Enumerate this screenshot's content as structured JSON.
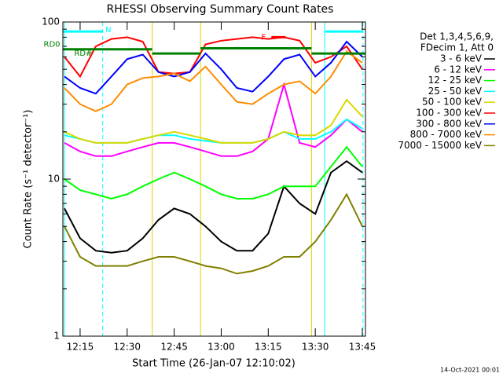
{
  "chart_data": {
    "type": "line",
    "title": "RHESSI Observing Summary Count Rates",
    "x_label": "Start Time (26-Jan-07 12:10:02)",
    "y_label": "Count Rate (s⁻¹ detector⁻¹)",
    "footer": "14-Oct-2021 00:01",
    "legend_header": [
      "Det 1,3,4,5,6,9,",
      "FDecim 1, Att 0"
    ],
    "y_log": true,
    "xlim": [
      729.5,
      826
    ],
    "ylim": [
      1,
      100
    ],
    "xticks": [
      {
        "value": 735,
        "label": "12:15"
      },
      {
        "value": 750,
        "label": "12:30"
      },
      {
        "value": 765,
        "label": "12:45"
      },
      {
        "value": 780,
        "label": "13:00"
      },
      {
        "value": 795,
        "label": "13:15"
      },
      {
        "value": 810,
        "label": "13:30"
      },
      {
        "value": 825,
        "label": "13:45"
      }
    ],
    "yticks": [
      1,
      10,
      100
    ],
    "x": [
      730,
      735,
      740,
      745,
      750,
      755,
      760,
      765,
      770,
      775,
      780,
      785,
      790,
      795,
      800,
      805,
      810,
      815,
      820,
      825
    ],
    "series": [
      {
        "name": "3 - 6 keV",
        "color": "#000000",
        "values": [
          6.5,
          4.2,
          3.5,
          3.4,
          3.5,
          4.2,
          5.5,
          6.5,
          6,
          5,
          4,
          3.5,
          3.5,
          4.5,
          9,
          7,
          6,
          11,
          13,
          11
        ]
      },
      {
        "name": "6 - 12 keV",
        "color": "#ff00ff",
        "values": [
          17,
          15,
          14,
          14,
          15,
          16,
          17,
          17,
          16,
          15,
          14,
          14,
          15,
          18,
          40,
          17,
          16,
          19,
          24,
          20
        ]
      },
      {
        "name": "12 - 25 keV",
        "color": "#00ff00",
        "values": [
          10,
          8.5,
          8,
          7.5,
          8,
          9,
          10,
          11,
          10,
          9,
          8,
          7.5,
          7.5,
          8,
          9,
          9,
          9,
          12,
          16,
          12
        ]
      },
      {
        "name": "25 - 50 keV",
        "color": "#00ffff",
        "values": [
          19,
          18,
          17,
          17,
          17,
          18,
          19,
          19,
          18,
          17.5,
          17,
          17,
          17,
          18,
          20,
          18,
          18,
          20,
          24,
          21
        ]
      },
      {
        "name": "50 - 100 keV",
        "color": "#d8d800",
        "values": [
          20,
          18,
          17,
          17,
          17,
          18,
          19,
          20,
          19,
          18,
          17,
          17,
          17,
          18,
          20,
          19,
          19,
          22,
          32,
          25
        ]
      },
      {
        "name": "100 - 300 keV",
        "color": "#ff0000",
        "values": [
          60,
          45,
          70,
          78,
          80,
          75,
          48,
          47,
          48,
          72,
          76,
          78,
          80,
          78,
          80,
          76,
          55,
          60,
          70,
          50
        ]
      },
      {
        "name": "300 - 800 keV",
        "color": "#0000ff",
        "values": [
          45,
          38,
          35,
          45,
          58,
          62,
          48,
          45,
          48,
          63,
          50,
          38,
          36,
          45,
          58,
          62,
          45,
          55,
          75,
          60
        ]
      },
      {
        "name": "800 - 7000 keV",
        "color": "#ff8c00",
        "values": [
          38,
          30,
          27,
          30,
          40,
          44,
          45,
          47,
          42,
          52,
          40,
          31,
          30,
          35,
          40,
          42,
          35,
          45,
          65,
          55
        ]
      },
      {
        "name": "7000 - 15000 keV",
        "color": "#808000",
        "values": [
          5,
          3.2,
          2.8,
          2.8,
          2.8,
          3,
          3.2,
          3.2,
          3,
          2.8,
          2.7,
          2.5,
          2.6,
          2.8,
          3.2,
          3.2,
          4,
          5.5,
          8,
          5
        ]
      }
    ],
    "vlines": [
      {
        "x": 730,
        "color": "#00ffff",
        "dashed": false
      },
      {
        "x": 742.2,
        "color": "#00ffff",
        "dashed": true
      },
      {
        "x": 758,
        "color": "#d8d800",
        "dashed": false
      },
      {
        "x": 773.4,
        "color": "#d8d800",
        "dashed": false
      },
      {
        "x": 808.8,
        "color": "#d8d800",
        "dashed": false
      },
      {
        "x": 813,
        "color": "#00ffff",
        "dashed": false
      },
      {
        "x": 825.2,
        "color": "#00ffff",
        "dashed": true
      }
    ],
    "flag_segments": [
      {
        "x0": 729.5,
        "x1": 758,
        "y": 67,
        "color": "#008000"
      },
      {
        "x0": 758,
        "x1": 773.4,
        "y": 63,
        "color": "#008000"
      },
      {
        "x0": 773.4,
        "x1": 808.8,
        "y": 68,
        "color": "#008000"
      },
      {
        "x0": 808.8,
        "x1": 826,
        "y": 63,
        "color": "#008000"
      },
      {
        "x0": 729.5,
        "x1": 742.2,
        "y": 87,
        "color": "#00ffff"
      },
      {
        "x0": 813,
        "x1": 825.2,
        "y": 87,
        "color": "#00ffff"
      },
      {
        "x0": 796,
        "x1": 800.5,
        "y": 80,
        "color": "#ff0000"
      }
    ],
    "annotations": [
      {
        "text": "RD0",
        "x": 726,
        "y": 72,
        "color": "#008000"
      },
      {
        "text": "RD#",
        "x": 736,
        "y": 63,
        "color": "#008000"
      },
      {
        "text": "N",
        "x": 744,
        "y": 89,
        "color": "#00ffff"
      },
      {
        "text": "F",
        "x": 793.5,
        "y": 80,
        "color": "#ff0000"
      }
    ]
  }
}
